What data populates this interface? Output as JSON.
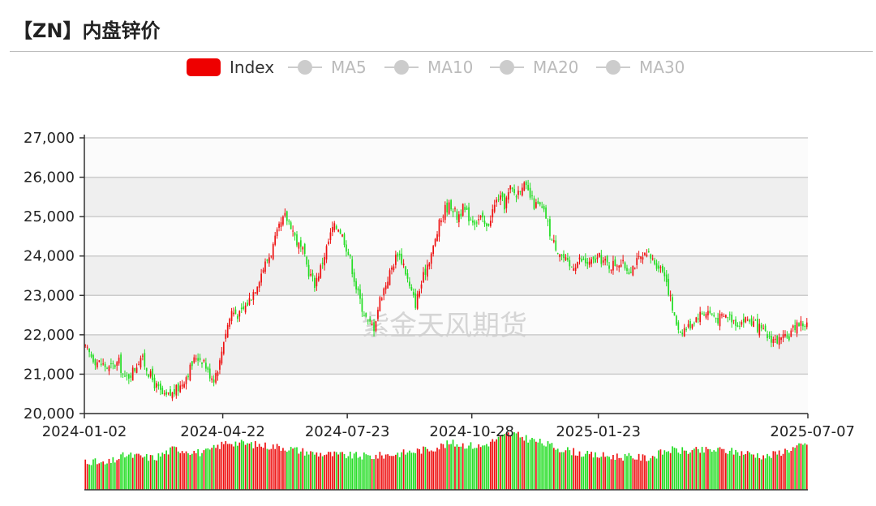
{
  "page": {
    "title": "【ZN】内盘锌价",
    "watermark": "紫金天风期货"
  },
  "legend": [
    {
      "label": "Index",
      "active": true,
      "color": "#ee0000"
    },
    {
      "label": "MA5",
      "active": false,
      "color": "#cccccc"
    },
    {
      "label": "MA10",
      "active": false,
      "color": "#cccccc"
    },
    {
      "label": "MA20",
      "active": false,
      "color": "#cccccc"
    },
    {
      "label": "MA30",
      "active": false,
      "color": "#cccccc"
    }
  ],
  "colors": {
    "up": "#ee1111",
    "down": "#22dd22",
    "grid": "#cccccc",
    "band": "#efefef"
  },
  "chart_data": {
    "type": "candlestick",
    "series_name": "Index",
    "ylim": [
      20000,
      27000
    ],
    "yticks": [
      "27,000",
      "26,000",
      "25,000",
      "24,000",
      "23,000",
      "22,000",
      "21,000",
      "20,000"
    ],
    "ytick_values": [
      27000,
      26000,
      25000,
      24000,
      23000,
      22000,
      21000,
      20000
    ],
    "xticks": [
      "2024-01-02",
      "2024-04-22",
      "2024-07-23",
      "2024-10-28",
      "2025-01-23",
      "2025-07-07"
    ],
    "xtick_index": [
      0,
      70,
      133,
      196,
      260,
      365
    ],
    "x_start": "2024-01-02",
    "x_end": "2025-07-07",
    "grid": true,
    "legend_position": "top-center",
    "close_anchors": [
      {
        "t": 0,
        "v": 21650
      },
      {
        "t": 5,
        "v": 21350
      },
      {
        "t": 12,
        "v": 21150
      },
      {
        "t": 17,
        "v": 21300
      },
      {
        "t": 20,
        "v": 20850
      },
      {
        "t": 25,
        "v": 21150
      },
      {
        "t": 28,
        "v": 21450
      },
      {
        "t": 32,
        "v": 21050
      },
      {
        "t": 35,
        "v": 20750
      },
      {
        "t": 40,
        "v": 20400
      },
      {
        "t": 44,
        "v": 20500
      },
      {
        "t": 48,
        "v": 20700
      },
      {
        "t": 52,
        "v": 21050
      },
      {
        "t": 56,
        "v": 21450
      },
      {
        "t": 60,
        "v": 21350
      },
      {
        "t": 62,
        "v": 21050
      },
      {
        "t": 65,
        "v": 20900
      },
      {
        "t": 68,
        "v": 21300
      },
      {
        "t": 70,
        "v": 21900
      },
      {
        "t": 74,
        "v": 22600
      },
      {
        "t": 78,
        "v": 22500
      },
      {
        "t": 82,
        "v": 22800
      },
      {
        "t": 86,
        "v": 23200
      },
      {
        "t": 90,
        "v": 23700
      },
      {
        "t": 94,
        "v": 24100
      },
      {
        "t": 98,
        "v": 24700
      },
      {
        "t": 101,
        "v": 25000
      },
      {
        "t": 104,
        "v": 24800
      },
      {
        "t": 107,
        "v": 24350
      },
      {
        "t": 110,
        "v": 24100
      },
      {
        "t": 113,
        "v": 23600
      },
      {
        "t": 116,
        "v": 23300
      },
      {
        "t": 119,
        "v": 23700
      },
      {
        "t": 122,
        "v": 24200
      },
      {
        "t": 125,
        "v": 24700
      },
      {
        "t": 128,
        "v": 24750
      },
      {
        "t": 131,
        "v": 24400
      },
      {
        "t": 134,
        "v": 23900
      },
      {
        "t": 137,
        "v": 23200
      },
      {
        "t": 140,
        "v": 22700
      },
      {
        "t": 143,
        "v": 22300
      },
      {
        "t": 146,
        "v": 22200
      },
      {
        "t": 149,
        "v": 22900
      },
      {
        "t": 152,
        "v": 23300
      },
      {
        "t": 155,
        "v": 23700
      },
      {
        "t": 158,
        "v": 24100
      },
      {
        "t": 161,
        "v": 23800
      },
      {
        "t": 164,
        "v": 23200
      },
      {
        "t": 167,
        "v": 22800
      },
      {
        "t": 170,
        "v": 23300
      },
      {
        "t": 173,
        "v": 23800
      },
      {
        "t": 176,
        "v": 24200
      },
      {
        "t": 179,
        "v": 24800
      },
      {
        "t": 182,
        "v": 25200
      },
      {
        "t": 185,
        "v": 25300
      },
      {
        "t": 188,
        "v": 25000
      },
      {
        "t": 191,
        "v": 25200
      },
      {
        "t": 194,
        "v": 25000
      },
      {
        "t": 197,
        "v": 24900
      },
      {
        "t": 200,
        "v": 24950
      },
      {
        "t": 203,
        "v": 24700
      },
      {
        "t": 206,
        "v": 25150
      },
      {
        "t": 209,
        "v": 25500
      },
      {
        "t": 212,
        "v": 25300
      },
      {
        "t": 215,
        "v": 25700
      },
      {
        "t": 218,
        "v": 25550
      },
      {
        "t": 221,
        "v": 25850
      },
      {
        "t": 224,
        "v": 25600
      },
      {
        "t": 227,
        "v": 25300
      },
      {
        "t": 230,
        "v": 25250
      },
      {
        "t": 233,
        "v": 25000
      },
      {
        "t": 236,
        "v": 24400
      },
      {
        "t": 240,
        "v": 24100
      },
      {
        "t": 245,
        "v": 23700
      },
      {
        "t": 250,
        "v": 23900
      },
      {
        "t": 255,
        "v": 23800
      },
      {
        "t": 260,
        "v": 23950
      },
      {
        "t": 265,
        "v": 23750
      },
      {
        "t": 270,
        "v": 23850
      },
      {
        "t": 275,
        "v": 23650
      },
      {
        "t": 280,
        "v": 23900
      },
      {
        "t": 285,
        "v": 24000
      },
      {
        "t": 289,
        "v": 23800
      },
      {
        "t": 293,
        "v": 23600
      },
      {
        "t": 296,
        "v": 22900
      },
      {
        "t": 298,
        "v": 22400
      },
      {
        "t": 301,
        "v": 22100
      },
      {
        "t": 305,
        "v": 22200
      },
      {
        "t": 310,
        "v": 22500
      },
      {
        "t": 315,
        "v": 22600
      },
      {
        "t": 320,
        "v": 22400
      },
      {
        "t": 325,
        "v": 22500
      },
      {
        "t": 330,
        "v": 22300
      },
      {
        "t": 335,
        "v": 22400
      },
      {
        "t": 340,
        "v": 22200
      },
      {
        "t": 345,
        "v": 21950
      },
      {
        "t": 350,
        "v": 21850
      },
      {
        "t": 355,
        "v": 21900
      },
      {
        "t": 360,
        "v": 22300
      },
      {
        "t": 365,
        "v": 22250
      }
    ],
    "volume_anchors": [
      {
        "t": 0,
        "v": 0.45
      },
      {
        "t": 10,
        "v": 0.38
      },
      {
        "t": 20,
        "v": 0.52
      },
      {
        "t": 35,
        "v": 0.48
      },
      {
        "t": 45,
        "v": 0.62
      },
      {
        "t": 60,
        "v": 0.55
      },
      {
        "t": 72,
        "v": 0.72
      },
      {
        "t": 85,
        "v": 0.68
      },
      {
        "t": 100,
        "v": 0.64
      },
      {
        "t": 115,
        "v": 0.55
      },
      {
        "t": 130,
        "v": 0.52
      },
      {
        "t": 145,
        "v": 0.5
      },
      {
        "t": 160,
        "v": 0.55
      },
      {
        "t": 175,
        "v": 0.62
      },
      {
        "t": 185,
        "v": 0.7
      },
      {
        "t": 200,
        "v": 0.65
      },
      {
        "t": 215,
        "v": 0.85
      },
      {
        "t": 225,
        "v": 0.76
      },
      {
        "t": 240,
        "v": 0.62
      },
      {
        "t": 255,
        "v": 0.52
      },
      {
        "t": 270,
        "v": 0.5
      },
      {
        "t": 285,
        "v": 0.48
      },
      {
        "t": 295,
        "v": 0.6
      },
      {
        "t": 305,
        "v": 0.58
      },
      {
        "t": 320,
        "v": 0.6
      },
      {
        "t": 335,
        "v": 0.55
      },
      {
        "t": 345,
        "v": 0.5
      },
      {
        "t": 355,
        "v": 0.6
      },
      {
        "t": 365,
        "v": 0.68
      }
    ]
  }
}
